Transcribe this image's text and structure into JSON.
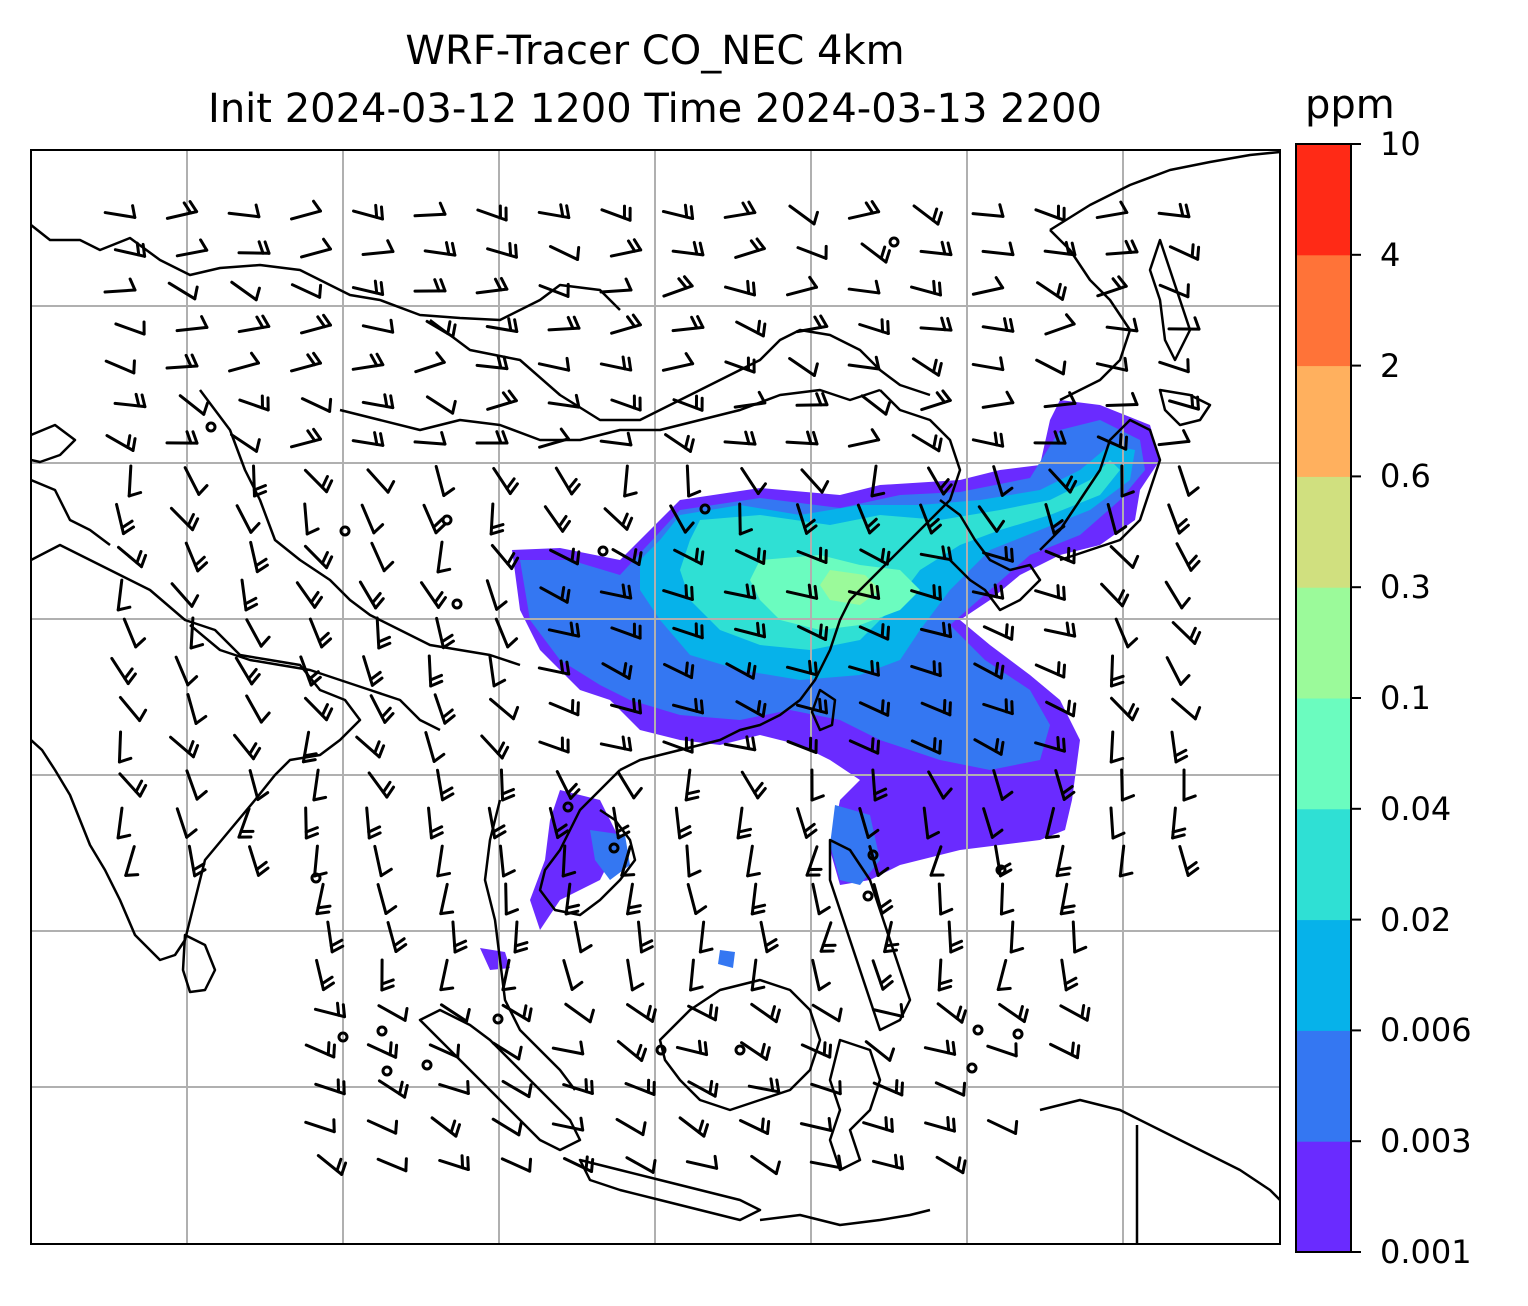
{
  "title": {
    "line1": "WRF-Tracer CO_NEC 4km",
    "line2": "Init 2024-03-12 1200 Time 2024-03-13 2200"
  },
  "colorbar": {
    "unit": "ppm",
    "levels": [
      "0.001",
      "0.003",
      "0.006",
      "0.02",
      "0.04",
      "0.1",
      "0.3",
      "0.6",
      "2",
      "4",
      "10"
    ],
    "colors": [
      "#6a2bff",
      "#3477f2",
      "#06b2ea",
      "#2fe0d4",
      "#6bfcbf",
      "#9bfa9a",
      "#d0e07f",
      "#ffb05e",
      "#ff7338",
      "#ff2a16"
    ]
  },
  "map": {
    "grid": true,
    "land_outline_color": "#000000",
    "grid_color": "#b0b0b0",
    "plume_palette": [
      "#6a2bff",
      "#3477f2",
      "#06b2ea",
      "#2fe0d4",
      "#6bfcbf",
      "#9bfa9a"
    ]
  }
}
